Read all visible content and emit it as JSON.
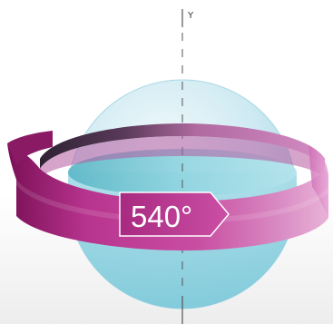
{
  "diagram": {
    "axis_label": "Y",
    "rotation_label": "540°",
    "colors": {
      "sphere_light": "#eef8fb",
      "sphere_mid": "#bfe5ef",
      "sphere_dark": "#8fcbdc",
      "water_light": "#9fdbe6",
      "water_dark": "#5ebfd0",
      "ribbon_light": "#e6a4d4",
      "ribbon_mid": "#c2409a",
      "ribbon_dark": "#8a1a64",
      "ribbon_inner": "#3c2a40",
      "axis": "#555555"
    }
  }
}
